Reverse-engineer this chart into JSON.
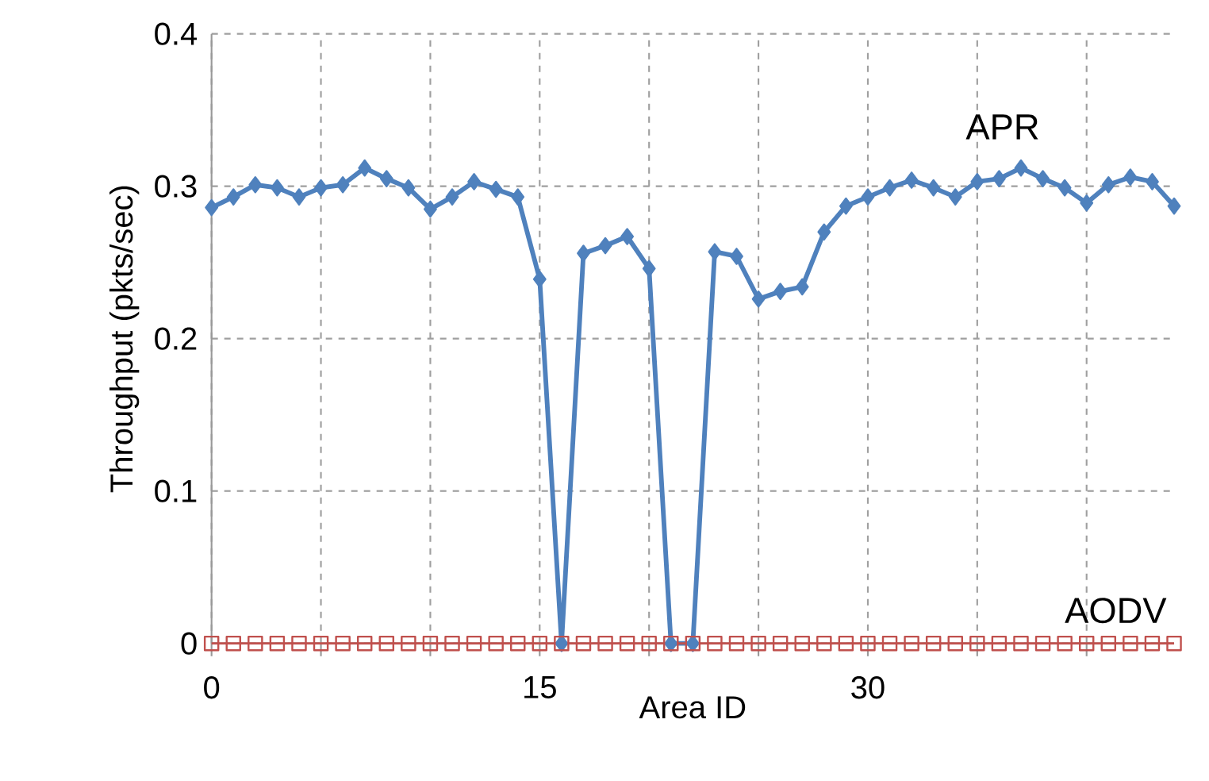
{
  "chart_data": {
    "type": "line",
    "xlabel": "Area ID",
    "ylabel": "Throughput (pkts/sec)",
    "x": [
      0,
      1,
      2,
      3,
      4,
      5,
      6,
      7,
      8,
      9,
      10,
      11,
      12,
      13,
      14,
      15,
      16,
      17,
      18,
      19,
      20,
      21,
      22,
      23,
      24,
      25,
      26,
      27,
      28,
      29,
      30,
      31,
      32,
      33,
      34,
      35,
      36,
      37,
      38,
      39,
      40,
      41,
      42,
      43,
      44
    ],
    "xlim": [
      0,
      44
    ],
    "ylim": [
      0,
      0.4
    ],
    "xticks": [
      0,
      {
        "value": 5,
        "label": null
      },
      {
        "value": 10,
        "label": null
      },
      15,
      {
        "value": 20,
        "label": null
      },
      {
        "value": 25,
        "label": null
      },
      30,
      {
        "value": 35,
        "label": null
      },
      {
        "value": 40,
        "label": null
      }
    ],
    "yticks": [
      0,
      0.1,
      0.2,
      0.3,
      0.4
    ],
    "grid": true,
    "line_style": "solid",
    "series": [
      {
        "name": "APR",
        "color": "#4f81bd",
        "marker": "diamond",
        "values": [
          0.286,
          0.293,
          0.301,
          0.299,
          0.293,
          0.299,
          0.301,
          0.312,
          0.305,
          0.299,
          0.285,
          0.293,
          0.303,
          0.298,
          0.293,
          0.239,
          0,
          0.256,
          0.261,
          0.267,
          0.246,
          0,
          0,
          0.257,
          0.254,
          0.226,
          0.231,
          0.234,
          0.27,
          0.287,
          0.293,
          0.299,
          0.304,
          0.299,
          0.293,
          0.303,
          0.305,
          0.312,
          0.305,
          0.299,
          0.289,
          0.301,
          0.306,
          0.303,
          0.287
        ]
      },
      {
        "name": "AODV",
        "color": "#c0504d",
        "marker": "square",
        "values": [
          0,
          0,
          0,
          0,
          0,
          0,
          0,
          0,
          0,
          0,
          0,
          0,
          0,
          0,
          0,
          0,
          0,
          0,
          0,
          0,
          0,
          0,
          0,
          0,
          0,
          0,
          0,
          0,
          0,
          0,
          0,
          0,
          0,
          0,
          0,
          0,
          0,
          0,
          0,
          0,
          0,
          0,
          0,
          0,
          0
        ]
      }
    ]
  }
}
